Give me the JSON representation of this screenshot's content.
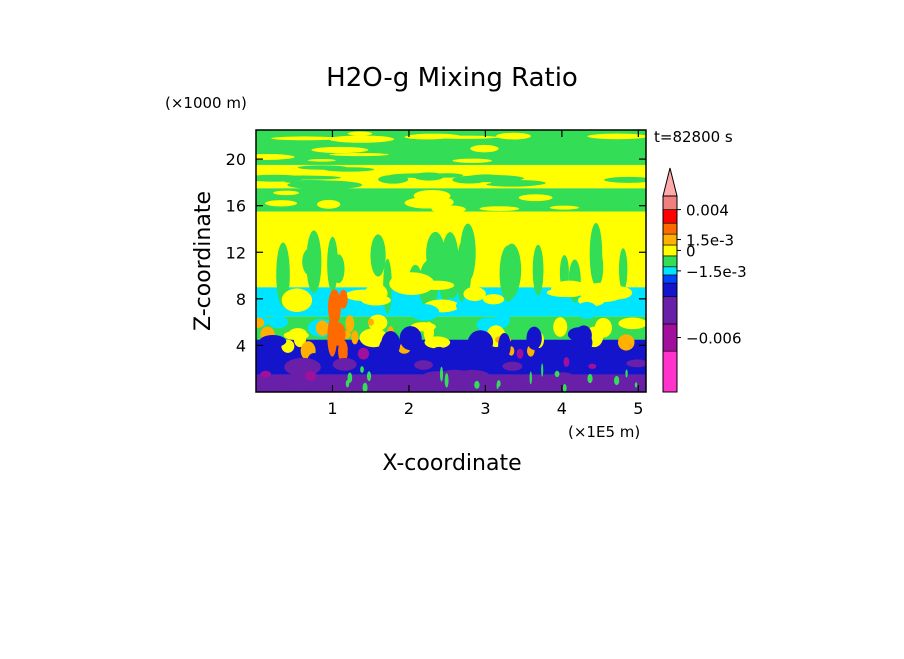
{
  "chart_data": {
    "type": "heatmap",
    "title": "H2O-g Mixing Ratio",
    "xlabel": "X-coordinate",
    "ylabel": "Z-coordinate",
    "x_unit": "(×1E5 m)",
    "y_unit": "(×1000 m)",
    "time_label": "t=82800 s",
    "x_ticks": [
      1,
      2,
      3,
      4,
      5
    ],
    "y_ticks": [
      4,
      8,
      12,
      16,
      20
    ],
    "xlim": [
      0,
      5.1
    ],
    "ylim": [
      0,
      22.5
    ],
    "colorbar": {
      "levels": [
        {
          "color": "#ff33cc"
        },
        {
          "color": "#a0109c"
        },
        {
          "color": "#6a1fa8"
        },
        {
          "color": "#1414cc"
        },
        {
          "color": "#0044ff"
        },
        {
          "color": "#00e5ff"
        },
        {
          "color": "#33dd55"
        },
        {
          "color": "#ffff00"
        },
        {
          "color": "#ffb000"
        },
        {
          "color": "#ff6a00"
        },
        {
          "color": "#ff0000"
        },
        {
          "color": "#f08080"
        },
        {
          "color": "#ffaaaa"
        }
      ],
      "labels": [
        {
          "text": "0.004",
          "boundary": 11
        },
        {
          "text": "1.5e-3",
          "boundary": 8.5
        },
        {
          "text": "0",
          "boundary": 7.5
        },
        {
          "text": "−1.5e-3",
          "boundary": 5.5
        },
        {
          "text": "−0.006",
          "boundary": 1.5
        }
      ]
    },
    "field": {
      "zones": [
        {
          "zmin": 0,
          "zmax": 1.5,
          "color": "#6a1fa8"
        },
        {
          "zmin": 1.5,
          "zmax": 4.5,
          "color": "#1414cc"
        },
        {
          "zmin": 4.5,
          "zmax": 6.5,
          "color": "#33dd55"
        },
        {
          "zmin": 6.5,
          "zmax": 9.0,
          "color": "#00e5ff"
        },
        {
          "zmin": 9.0,
          "zmax": 15.5,
          "color": "#ffff00"
        },
        {
          "zmin": 15.5,
          "zmax": 17.5,
          "color": "#33dd55"
        },
        {
          "zmin": 17.5,
          "zmax": 19.5,
          "color": "#ffff00"
        },
        {
          "zmin": 19.5,
          "zmax": 22.5,
          "color": "#33dd55"
        }
      ]
    }
  }
}
